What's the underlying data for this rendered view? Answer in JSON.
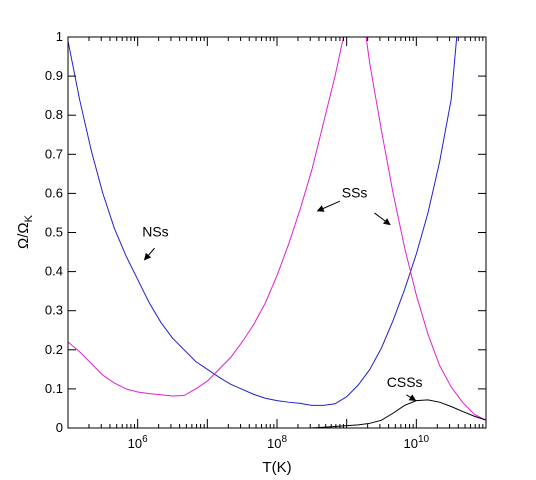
{
  "chart_data": {
    "type": "line",
    "xlabel": "T(K)",
    "ylabel": "Ω/Ω",
    "ylabel_subscript": "K",
    "xscale": "log",
    "xlim": [
      100000,
      100000000000
    ],
    "ylim": [
      0,
      1
    ],
    "x_ticks": [
      {
        "value": 1000000,
        "base": "10",
        "exp": "6"
      },
      {
        "value": 100000000,
        "base": "10",
        "exp": "8"
      },
      {
        "value": 10000000000,
        "base": "10",
        "exp": "10"
      }
    ],
    "y_ticks": [
      {
        "value": 0,
        "label": "0"
      },
      {
        "value": 0.1,
        "label": "0.1"
      },
      {
        "value": 0.2,
        "label": "0.2"
      },
      {
        "value": 0.3,
        "label": "0.3"
      },
      {
        "value": 0.4,
        "label": "0.4"
      },
      {
        "value": 0.5,
        "label": "0.5"
      },
      {
        "value": 0.6,
        "label": "0.6"
      },
      {
        "value": 0.7,
        "label": "0.7"
      },
      {
        "value": 0.8,
        "label": "0.8"
      },
      {
        "value": 0.9,
        "label": "0.9"
      },
      {
        "value": 1,
        "label": "1"
      }
    ],
    "grid": false,
    "series": [
      {
        "color": "#2020d0",
        "points": [
          [
            100000,
            0.99
          ],
          [
            146780,
            0.84
          ],
          [
            215440,
            0.71
          ],
          [
            316230,
            0.6
          ],
          [
            464160,
            0.51
          ],
          [
            681290,
            0.44
          ],
          [
            1000000,
            0.38
          ],
          [
            1467800,
            0.32
          ],
          [
            2154400,
            0.27
          ],
          [
            3162300,
            0.23
          ],
          [
            4641600,
            0.2
          ],
          [
            6812900,
            0.17
          ],
          [
            10000000,
            0.15
          ],
          [
            14678000,
            0.13
          ],
          [
            21544000,
            0.112
          ],
          [
            31623000,
            0.099
          ],
          [
            46416000,
            0.086
          ],
          [
            68129000,
            0.076
          ],
          [
            100000000,
            0.07
          ],
          [
            146780000,
            0.066
          ],
          [
            215440000,
            0.063
          ],
          [
            316230000,
            0.058
          ],
          [
            464160000,
            0.058
          ],
          [
            681290000,
            0.062
          ],
          [
            1000000000,
            0.08
          ],
          [
            1467800000,
            0.11
          ],
          [
            2154400000,
            0.15
          ],
          [
            3162300000,
            0.205
          ],
          [
            4641600000,
            0.275
          ],
          [
            6812900000,
            0.355
          ],
          [
            10000000000,
            0.445
          ],
          [
            14678000000,
            0.55
          ],
          [
            21544000000,
            0.68
          ],
          [
            31623000000,
            0.84
          ],
          [
            38000000000,
            1.0
          ]
        ]
      },
      {
        "color": "#e020d0",
        "points": [
          [
            100000,
            0.22
          ],
          [
            146780,
            0.195
          ],
          [
            215440,
            0.165
          ],
          [
            316230,
            0.135
          ],
          [
            464160,
            0.115
          ],
          [
            681290,
            0.1
          ],
          [
            1000000,
            0.092
          ],
          [
            1467800,
            0.088
          ],
          [
            2154400,
            0.085
          ],
          [
            3162300,
            0.082
          ],
          [
            4641600,
            0.083
          ],
          [
            6812900,
            0.1
          ],
          [
            10000000,
            0.12
          ],
          [
            14678000,
            0.15
          ],
          [
            21544000,
            0.18
          ],
          [
            31623000,
            0.22
          ],
          [
            46416000,
            0.265
          ],
          [
            68129000,
            0.32
          ],
          [
            100000000,
            0.39
          ],
          [
            146780000,
            0.47
          ],
          [
            215440000,
            0.56
          ],
          [
            316230000,
            0.66
          ],
          [
            464160000,
            0.78
          ],
          [
            681290000,
            0.9
          ],
          [
            900000000,
            1.0
          ]
        ]
      },
      {
        "color": "#e020d0",
        "points": [
          [
            1900000000,
            1.0
          ],
          [
            2154400000,
            0.93
          ],
          [
            3162300000,
            0.76
          ],
          [
            4641600000,
            0.6
          ],
          [
            6812900000,
            0.46
          ],
          [
            10000000000,
            0.34
          ],
          [
            14678000000,
            0.24
          ],
          [
            21544000000,
            0.16
          ],
          [
            31623000000,
            0.105
          ],
          [
            46416000000,
            0.065
          ],
          [
            68129000000,
            0.035
          ],
          [
            100000000000,
            0.02
          ]
        ]
      },
      {
        "color": "#000000",
        "points": [
          [
            300000000,
            0.0
          ],
          [
            464160000,
            0.002
          ],
          [
            681290000,
            0.004
          ],
          [
            1000000000,
            0.006
          ],
          [
            1467800000,
            0.008
          ],
          [
            2154400000,
            0.012
          ],
          [
            3162300000,
            0.02
          ],
          [
            4641600000,
            0.038
          ],
          [
            6812900000,
            0.058
          ],
          [
            10000000000,
            0.07
          ],
          [
            14678000000,
            0.072
          ],
          [
            21544000000,
            0.066
          ],
          [
            31623000000,
            0.055
          ],
          [
            46416000000,
            0.042
          ],
          [
            68129000000,
            0.03
          ],
          [
            100000000000,
            0.02
          ]
        ]
      }
    ],
    "annotations": [
      {
        "text": "NSs",
        "text_at": [
          1800000,
          0.49
        ],
        "arrow_from": [
          1750000,
          0.46
        ],
        "arrow_to": [
          1250000,
          0.43
        ]
      },
      {
        "text": "SSs",
        "text_at": [
          1300000000,
          0.59
        ],
        "arrow_from": [
          800000000,
          0.58
        ],
        "arrow_to": [
          380000000,
          0.555
        ],
        "arrow2_from": [
          2500000000,
          0.55
        ],
        "arrow2_to": [
          4200000000,
          0.52
        ]
      },
      {
        "text": "CSSs",
        "text_at": [
          6800000000,
          0.105
        ],
        "arrow_from": [
          7200000000,
          0.085
        ],
        "arrow_to": [
          9800000000,
          0.07
        ]
      }
    ]
  }
}
